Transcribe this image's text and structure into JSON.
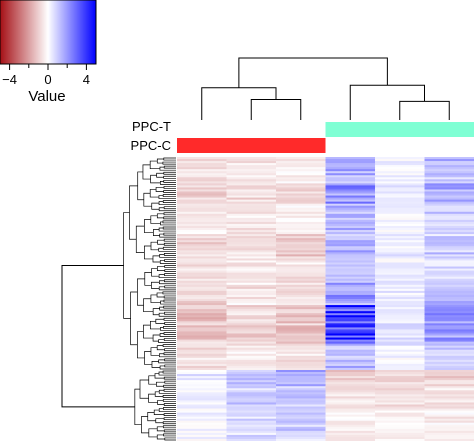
{
  "chart_data": {
    "type": "heatmap",
    "color_key": {
      "title": "Value",
      "ticks": [
        "−4",
        "0",
        "4"
      ],
      "tick_values": [
        -4,
        0,
        4
      ],
      "range": [
        -5,
        5
      ],
      "low_color": "#a50f15",
      "mid_color": "#ffffff",
      "high_color": "#0000ff"
    },
    "annotation_tracks": [
      {
        "name": "PPC-T",
        "colors": [
          "#ffffff",
          "#ffffff",
          "#ffffff",
          "#7fffd4",
          "#7fffd4",
          "#7fffd4"
        ]
      },
      {
        "name": "PPC-C",
        "colors": [
          "#ff2a2a",
          "#ff2a2a",
          "#ff2a2a",
          "#ffffff",
          "#ffffff",
          "#ffffff"
        ]
      }
    ],
    "n_columns": 6,
    "n_rows": 140,
    "col_dendrogram": {
      "merges": [
        [
          2,
          3,
          0.33
        ],
        [
          1,
          -1,
          0.52
        ],
        [
          5,
          6,
          0.3
        ],
        [
          4,
          -3,
          0.56
        ],
        [
          -2,
          -4,
          1.0
        ]
      ]
    },
    "row_dendrogram": {
      "upper_cluster_rows": [
        0,
        104
      ],
      "lower_cluster_rows": [
        105,
        139
      ],
      "root_height": 1.0
    },
    "row_blocks": [
      {
        "rows": [
          0,
          12
        ],
        "values": [
          -0.6,
          -0.5,
          -0.4,
          1.8,
          0.3,
          1.2
        ]
      },
      {
        "rows": [
          13,
          22
        ],
        "values": [
          -0.9,
          -0.7,
          -0.8,
          2.2,
          0.4,
          1.6
        ]
      },
      {
        "rows": [
          23,
          36
        ],
        "values": [
          -0.4,
          -0.5,
          -0.3,
          1.4,
          0.2,
          0.9
        ]
      },
      {
        "rows": [
          37,
          48
        ],
        "values": [
          -0.7,
          -0.6,
          -0.9,
          1.6,
          0.3,
          1.1
        ]
      },
      {
        "rows": [
          49,
          60
        ],
        "values": [
          -0.5,
          -0.4,
          -0.5,
          1.1,
          0.2,
          0.7
        ]
      },
      {
        "rows": [
          61,
          72
        ],
        "values": [
          -0.8,
          -0.5,
          -0.7,
          2.0,
          0.4,
          1.3
        ]
      },
      {
        "rows": [
          73,
          92
        ],
        "values": [
          -1.2,
          -0.9,
          -1.1,
          3.8,
          0.6,
          1.9
        ]
      },
      {
        "rows": [
          93,
          104
        ],
        "values": [
          -0.6,
          -0.4,
          -0.6,
          1.3,
          0.3,
          0.8
        ]
      },
      {
        "rows": [
          105,
          112
        ],
        "values": [
          0.4,
          1.3,
          1.5,
          -1.0,
          -0.7,
          -0.8
        ]
      },
      {
        "rows": [
          113,
          124
        ],
        "values": [
          0.3,
          0.9,
          1.1,
          -0.6,
          -0.5,
          -0.5
        ]
      },
      {
        "rows": [
          125,
          139
        ],
        "values": [
          0.2,
          0.7,
          0.9,
          -0.4,
          -0.3,
          -0.3
        ]
      }
    ]
  }
}
